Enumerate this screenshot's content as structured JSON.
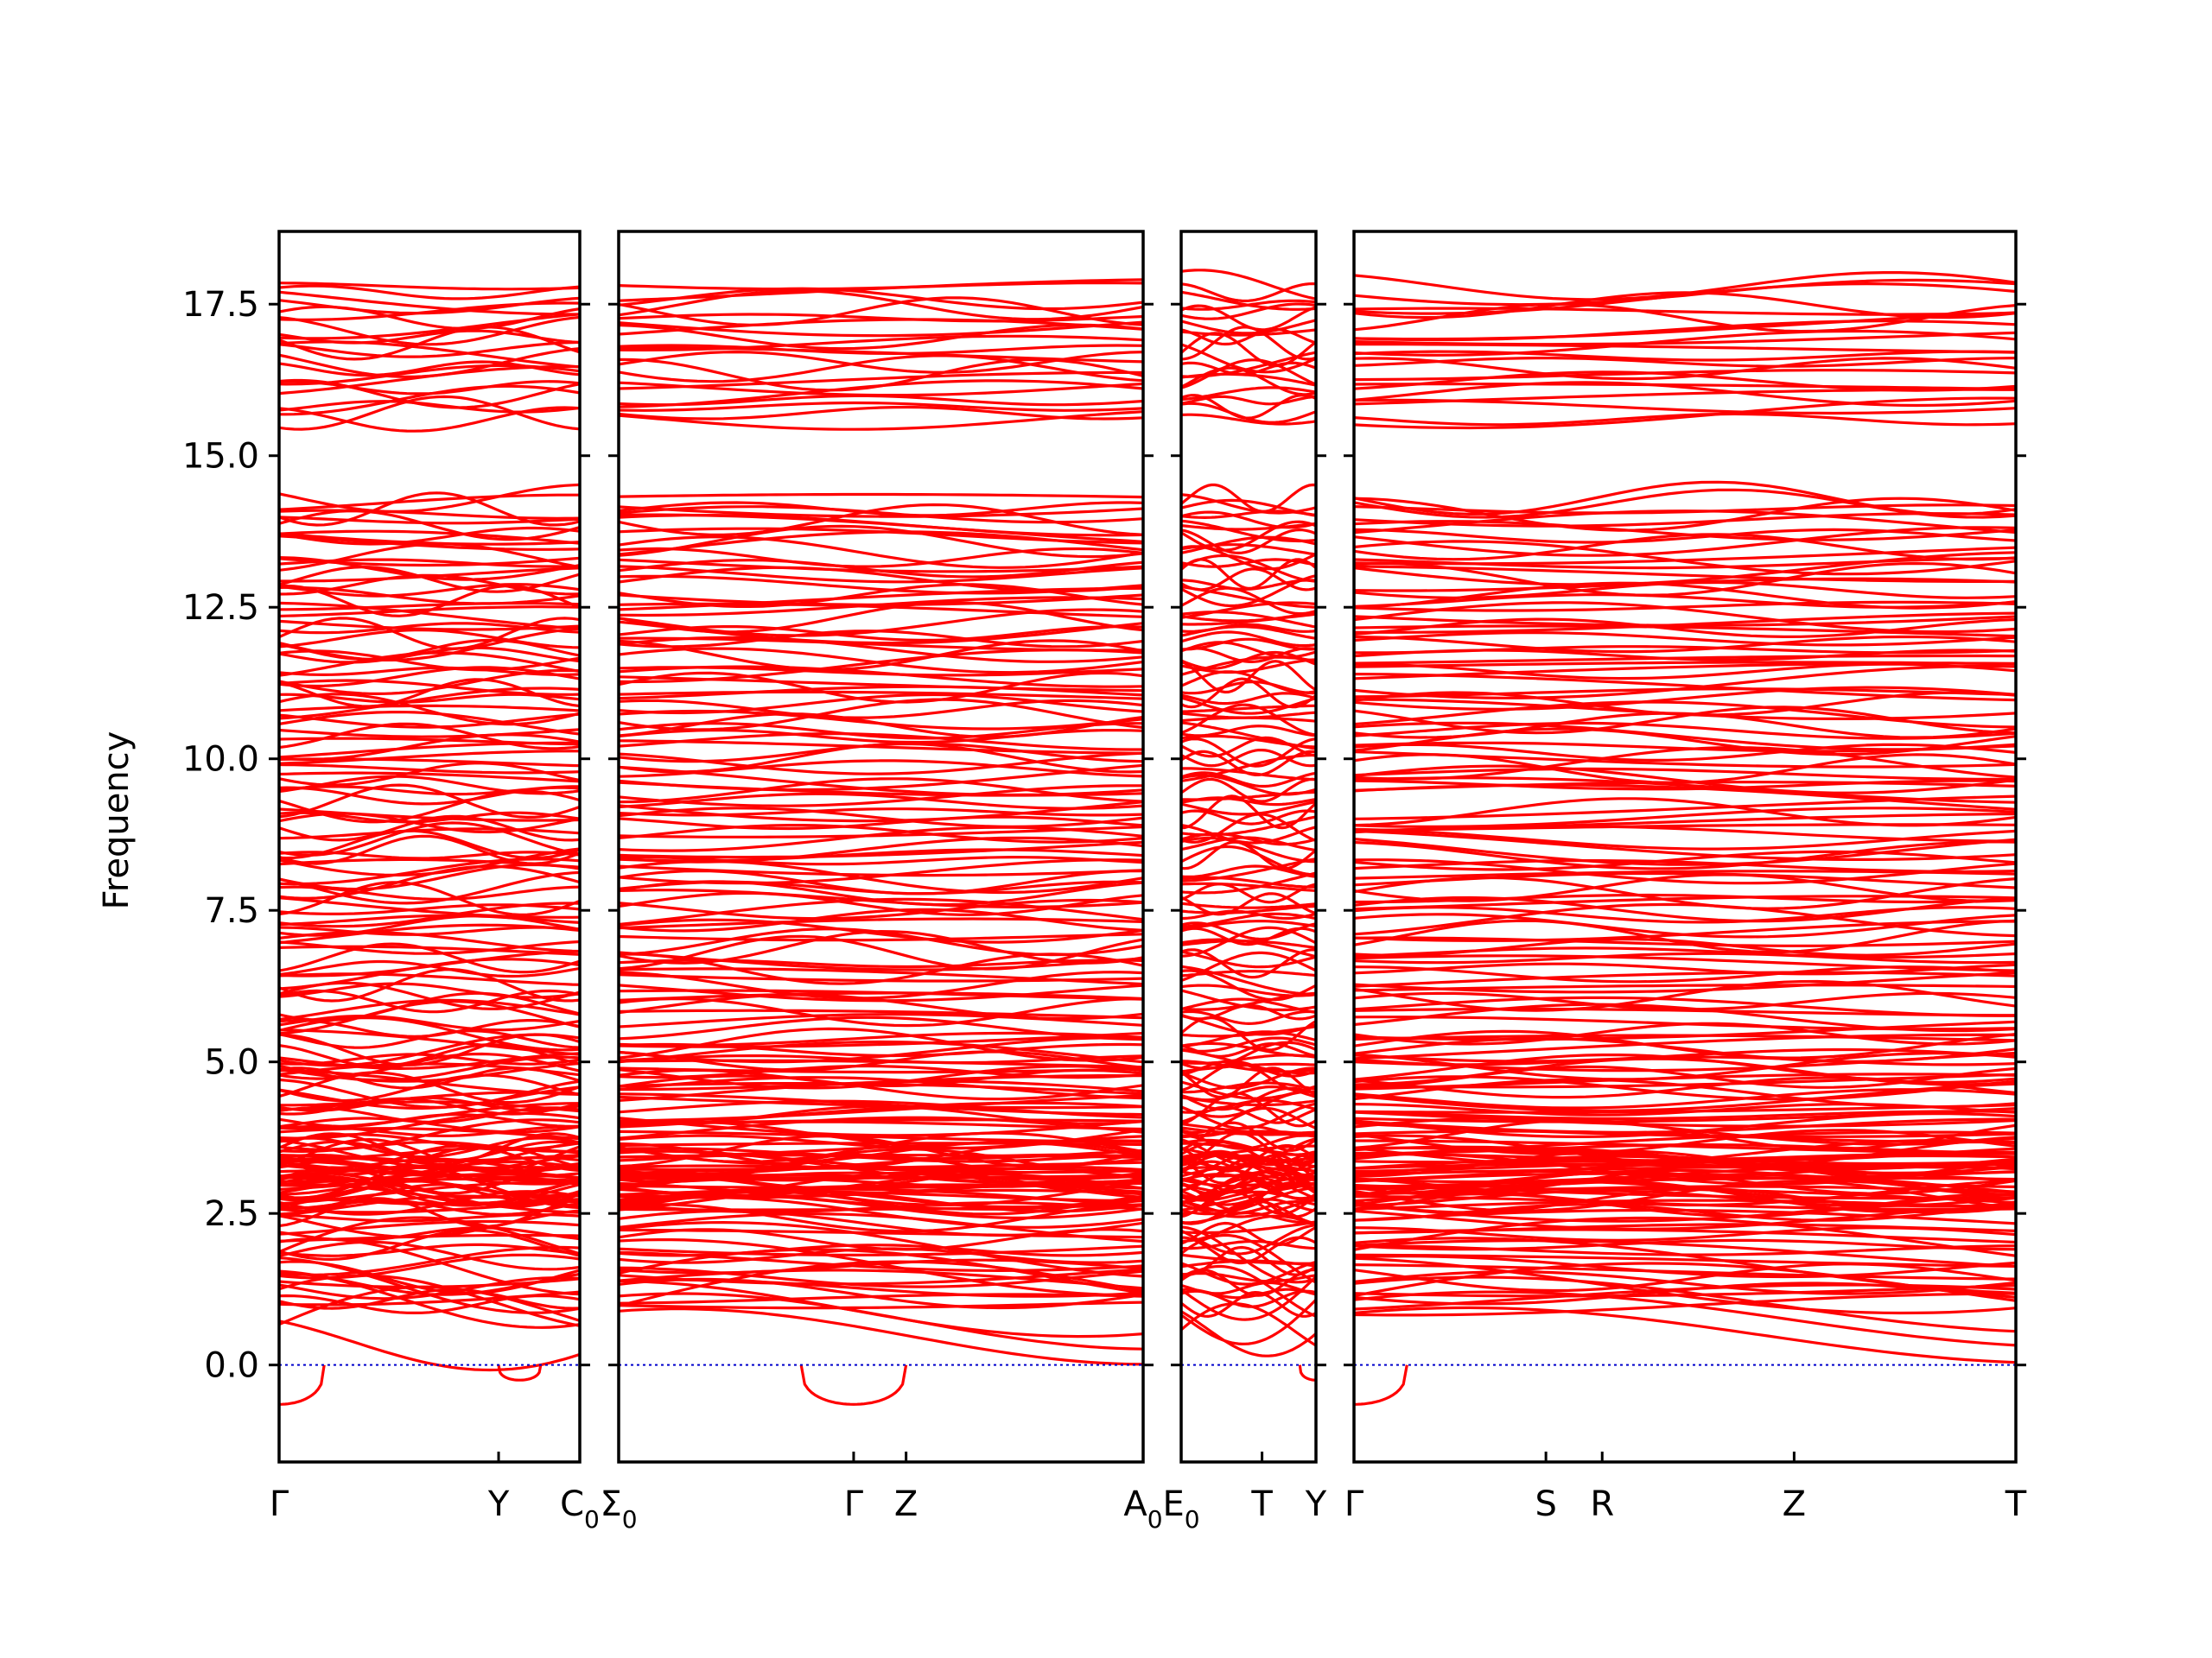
{
  "chart_data": {
    "type": "line",
    "ylabel": "Frequency",
    "ylim": [
      -1.6,
      18.7
    ],
    "yticks": [
      "0.0",
      "2.5",
      "5.0",
      "7.5",
      "10.0",
      "12.5",
      "15.0",
      "17.5"
    ],
    "ytick_values": [
      0.0,
      2.5,
      5.0,
      7.5,
      10.0,
      12.5,
      15.0,
      17.5
    ],
    "grid": false,
    "colors": {
      "bands": "#ff0000",
      "zero_line": "#0000cc",
      "axes": "#000000"
    },
    "panels": [
      {
        "segment": "Γ–Y–C0",
        "xticks": [
          {
            "pos": 0.0,
            "label": "Γ",
            "sub": ""
          },
          {
            "pos": 0.73,
            "label": "Y",
            "sub": ""
          },
          {
            "pos": 1.0,
            "label": "C",
            "sub": "0"
          }
        ]
      },
      {
        "segment": "Σ0–Γ–Z–A0",
        "xticks": [
          {
            "pos": 0.0,
            "label": "Σ",
            "sub": "0"
          },
          {
            "pos": 0.448,
            "label": "Γ",
            "sub": ""
          },
          {
            "pos": 0.548,
            "label": "Z",
            "sub": ""
          },
          {
            "pos": 1.0,
            "label": "A",
            "sub": "0"
          }
        ]
      },
      {
        "segment": "E0–T–Y",
        "xticks": [
          {
            "pos": 0.0,
            "label": "E",
            "sub": "0"
          },
          {
            "pos": 0.6,
            "label": "T",
            "sub": ""
          },
          {
            "pos": 1.0,
            "label": "Y",
            "sub": ""
          }
        ]
      },
      {
        "segment": "Γ–S–R–Z–T",
        "xticks": [
          {
            "pos": 0.0,
            "label": "Γ",
            "sub": ""
          },
          {
            "pos": 0.29,
            "label": "S",
            "sub": ""
          },
          {
            "pos": 0.375,
            "label": "R",
            "sub": ""
          },
          {
            "pos": 0.665,
            "label": "Z",
            "sub": ""
          },
          {
            "pos": 1.0,
            "label": "T",
            "sub": ""
          }
        ]
      }
    ],
    "bands_summary": {
      "upper_group_range": [
        15.55,
        17.8
      ],
      "gap_range": [
        14.45,
        15.55
      ],
      "lower_group_range": [
        -0.65,
        14.45
      ],
      "imaginary_minimum": -0.65
    }
  }
}
